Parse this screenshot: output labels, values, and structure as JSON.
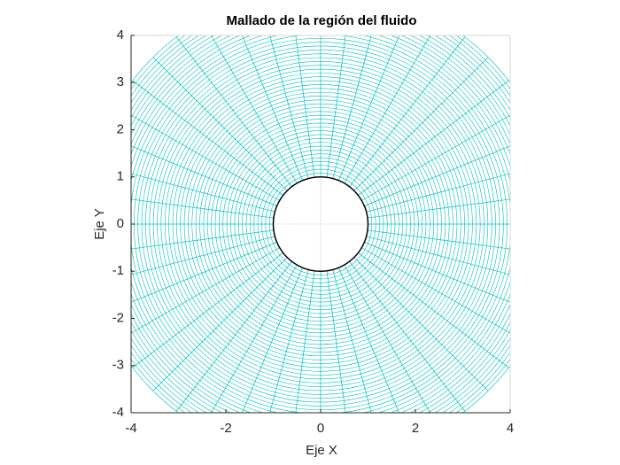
{
  "chart_data": {
    "type": "polar-mesh",
    "title": "Mallado de la región del fluido",
    "x_label": "Eje X",
    "y_label": "Eje Y",
    "xlim": [
      -4,
      4
    ],
    "ylim": [
      -4,
      4
    ],
    "xticks": [
      -4,
      -2,
      0,
      2,
      4
    ],
    "yticks": [
      -4,
      -3,
      -2,
      -1,
      0,
      1,
      2,
      3,
      4
    ],
    "mesh": {
      "r_lim": [
        1,
        5
      ],
      "n_rings": 50,
      "n_spokes": 48,
      "color": "#00bfbf"
    },
    "cylinder": {
      "radius": 1,
      "color": "#000000"
    }
  }
}
